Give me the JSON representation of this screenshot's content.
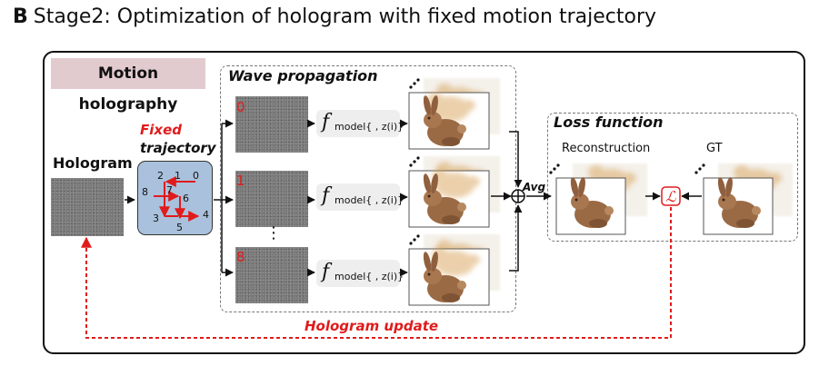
{
  "title": {
    "letter": "B",
    "text": "Stage2: Optimization of hologram with fixed motion trajectory"
  },
  "motion_holography": "Motion holography",
  "hologram_label": "Hologram",
  "fixed_trajectory": {
    "line1": "Fixed",
    "line2": "trajectory"
  },
  "trajectory_points": [
    "0",
    "1",
    "2",
    "3",
    "4",
    "5",
    "6",
    "7",
    "8"
  ],
  "wave_propagation": "Wave propagation",
  "frames": [
    "0",
    "1",
    "8"
  ],
  "vertical_ellipsis": "⋮",
  "model_function": {
    "symbol": "f",
    "subscript": "model{ , z(i)}"
  },
  "avg_label": "Avg",
  "loss_function": "Loss function",
  "reconstruction_label": "Reconstruction",
  "gt_label": "GT",
  "loss_symbol": "ℒ",
  "hologram_update": "Hologram update",
  "colors": {
    "accent_red": "#e11b1b",
    "badge": "#e2cbcf",
    "trajectory_fill": "#a9c1dc",
    "noise": "#7b7b7b",
    "function_bg": "#eeeeee"
  }
}
